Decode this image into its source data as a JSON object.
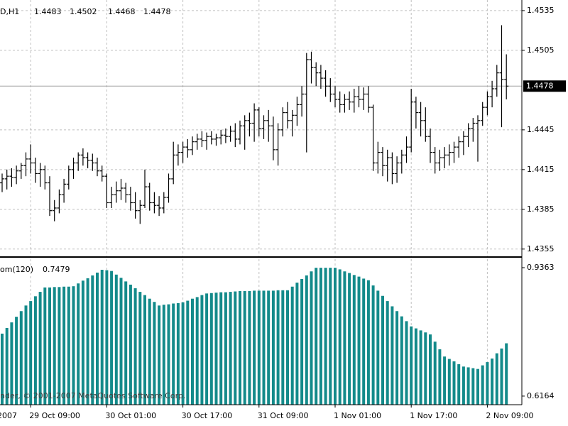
{
  "chart_data": [
    {
      "type": "ohlc",
      "symbol_label": "D,H1",
      "first_x_label": "2007",
      "copyright": "nder, © 2001-2007 MetaQuotes Software Corp.",
      "color": "#000000",
      "grid": true,
      "current_price_line": true,
      "ylim": [
        1.4349,
        1.4543
      ],
      "yticks": [
        1.4535,
        1.4505,
        1.4445,
        1.4415,
        1.4385,
        1.4355
      ],
      "categories": [
        null,
        null,
        null,
        null,
        null,
        null,
        "29 Oct 09:00",
        null,
        null,
        null,
        null,
        null,
        null,
        null,
        null,
        null,
        null,
        null,
        null,
        null,
        null,
        null,
        "30 Oct 01:00",
        null,
        null,
        null,
        null,
        null,
        null,
        null,
        null,
        null,
        null,
        null,
        null,
        null,
        null,
        null,
        "30 Oct 17:00",
        null,
        null,
        null,
        null,
        null,
        null,
        null,
        null,
        null,
        null,
        null,
        null,
        null,
        null,
        null,
        "31 Oct 09:00",
        null,
        null,
        null,
        null,
        null,
        null,
        null,
        null,
        null,
        null,
        null,
        null,
        null,
        null,
        null,
        "1 Nov 01:00",
        null,
        null,
        null,
        null,
        null,
        null,
        null,
        null,
        null,
        null,
        null,
        null,
        null,
        null,
        null,
        "1 Nov 17:00",
        null,
        null,
        null,
        null,
        null,
        null,
        null,
        null,
        null,
        null,
        null,
        null,
        null,
        null,
        null,
        "2 Nov 09:00",
        null,
        null,
        null,
        null
      ],
      "ohlc": [
        [
          1.4405,
          1.4412,
          1.4398,
          1.4408
        ],
        [
          1.4408,
          1.4415,
          1.44,
          1.441
        ],
        [
          1.441,
          1.4416,
          1.4402,
          1.4409
        ],
        [
          1.4409,
          1.4418,
          1.4404,
          1.4414
        ],
        [
          1.4414,
          1.442,
          1.4408,
          1.4418
        ],
        [
          1.4418,
          1.4428,
          1.441,
          1.4423
        ],
        [
          1.4423,
          1.4434,
          1.4412,
          1.442
        ],
        [
          1.442,
          1.4424,
          1.4405,
          1.4412
        ],
        [
          1.4412,
          1.442,
          1.4402,
          1.4415
        ],
        [
          1.4415,
          1.4418,
          1.44,
          1.4405
        ],
        [
          1.4405,
          1.441,
          1.438,
          1.4384
        ],
        [
          1.4384,
          1.4392,
          1.4376,
          1.4386
        ],
        [
          1.4386,
          1.44,
          1.4382,
          1.4396
        ],
        [
          1.4396,
          1.4408,
          1.439,
          1.4404
        ],
        [
          1.4404,
          1.4418,
          1.44,
          1.4415
        ],
        [
          1.4415,
          1.4424,
          1.4408,
          1.442
        ],
        [
          1.442,
          1.4428,
          1.4414,
          1.4426
        ],
        [
          1.4426,
          1.4431,
          1.4418,
          1.4424
        ],
        [
          1.4424,
          1.4428,
          1.4416,
          1.4422
        ],
        [
          1.4422,
          1.4427,
          1.4414,
          1.442
        ],
        [
          1.442,
          1.4424,
          1.441,
          1.4414
        ],
        [
          1.4414,
          1.4418,
          1.4406,
          1.441
        ],
        [
          1.441,
          1.4412,
          1.4386,
          1.439
        ],
        [
          1.439,
          1.4402,
          1.4386,
          1.4396
        ],
        [
          1.4396,
          1.4406,
          1.439,
          1.4399
        ],
        [
          1.4399,
          1.4408,
          1.4392,
          1.4401
        ],
        [
          1.4401,
          1.4405,
          1.439,
          1.4396
        ],
        [
          1.4396,
          1.4402,
          1.4384,
          1.439
        ],
        [
          1.439,
          1.4398,
          1.4378,
          1.4384
        ],
        [
          1.4384,
          1.4392,
          1.4374,
          1.4388
        ],
        [
          1.4388,
          1.4415,
          1.4386,
          1.4402
        ],
        [
          1.4402,
          1.4405,
          1.4384,
          1.439
        ],
        [
          1.439,
          1.4398,
          1.4382,
          1.4388
        ],
        [
          1.4388,
          1.4395,
          1.438,
          1.4386
        ],
        [
          1.4386,
          1.4398,
          1.4382,
          1.4394
        ],
        [
          1.4394,
          1.4412,
          1.439,
          1.4408
        ],
        [
          1.4408,
          1.4436,
          1.4404,
          1.4426
        ],
        [
          1.4426,
          1.4434,
          1.4418,
          1.4428
        ],
        [
          1.4428,
          1.4436,
          1.442,
          1.4432
        ],
        [
          1.4432,
          1.4438,
          1.4424,
          1.443
        ],
        [
          1.443,
          1.444,
          1.4426,
          1.4436
        ],
        [
          1.4436,
          1.4442,
          1.443,
          1.4438
        ],
        [
          1.4438,
          1.4444,
          1.4432,
          1.4437
        ],
        [
          1.4437,
          1.4443,
          1.443,
          1.444
        ],
        [
          1.444,
          1.4444,
          1.4434,
          1.4438
        ],
        [
          1.4438,
          1.4442,
          1.4433,
          1.4439
        ],
        [
          1.4439,
          1.4445,
          1.4434,
          1.4441
        ],
        [
          1.4441,
          1.4446,
          1.4435,
          1.444
        ],
        [
          1.444,
          1.4448,
          1.4436,
          1.4444
        ],
        [
          1.4444,
          1.445,
          1.4432,
          1.4438
        ],
        [
          1.4438,
          1.4452,
          1.4434,
          1.4448
        ],
        [
          1.4448,
          1.4456,
          1.443,
          1.4452
        ],
        [
          1.4452,
          1.4458,
          1.444,
          1.445
        ],
        [
          1.445,
          1.4465,
          1.4436,
          1.446
        ],
        [
          1.446,
          1.4462,
          1.444,
          1.4446
        ],
        [
          1.4446,
          1.4456,
          1.4438,
          1.4452
        ],
        [
          1.4452,
          1.446,
          1.4436,
          1.4448
        ],
        [
          1.4448,
          1.4455,
          1.4422,
          1.443
        ],
        [
          1.443,
          1.445,
          1.4418,
          1.4445
        ],
        [
          1.4445,
          1.4462,
          1.444,
          1.4458
        ],
        [
          1.4458,
          1.4466,
          1.4446,
          1.4452
        ],
        [
          1.4452,
          1.446,
          1.444,
          1.4456
        ],
        [
          1.4456,
          1.447,
          1.4448,
          1.4464
        ],
        [
          1.4464,
          1.4478,
          1.4455,
          1.4472
        ],
        [
          1.4472,
          1.4503,
          1.4428,
          1.4498
        ],
        [
          1.4498,
          1.4504,
          1.448,
          1.4492
        ],
        [
          1.4492,
          1.4496,
          1.4478,
          1.4488
        ],
        [
          1.4488,
          1.4494,
          1.4476,
          1.4484
        ],
        [
          1.4484,
          1.449,
          1.447,
          1.4478
        ],
        [
          1.4478,
          1.4484,
          1.4466,
          1.4472
        ],
        [
          1.4472,
          1.4478,
          1.4462,
          1.4468
        ],
        [
          1.4468,
          1.4474,
          1.4458,
          1.4464
        ],
        [
          1.4464,
          1.4472,
          1.4458,
          1.4468
        ],
        [
          1.4468,
          1.4474,
          1.446,
          1.4466
        ],
        [
          1.4466,
          1.4476,
          1.4458,
          1.447
        ],
        [
          1.447,
          1.4478,
          1.4462,
          1.4468
        ],
        [
          1.4468,
          1.4477,
          1.446,
          1.4472
        ],
        [
          1.4472,
          1.4478,
          1.4458,
          1.4462
        ],
        [
          1.4462,
          1.4464,
          1.4414,
          1.442
        ],
        [
          1.442,
          1.4436,
          1.4412,
          1.4428
        ],
        [
          1.4428,
          1.4432,
          1.441,
          1.4418
        ],
        [
          1.4418,
          1.443,
          1.4406,
          1.4424
        ],
        [
          1.4424,
          1.4428,
          1.4404,
          1.4412
        ],
        [
          1.4412,
          1.4425,
          1.4405,
          1.442
        ],
        [
          1.442,
          1.443,
          1.4412,
          1.4426
        ],
        [
          1.4426,
          1.444,
          1.442,
          1.4432
        ],
        [
          1.4432,
          1.4476,
          1.4428,
          1.4466
        ],
        [
          1.4466,
          1.447,
          1.4446,
          1.4458
        ],
        [
          1.4458,
          1.4466,
          1.444,
          1.4452
        ],
        [
          1.4452,
          1.4462,
          1.4436,
          1.444
        ],
        [
          1.444,
          1.4446,
          1.442,
          1.4428
        ],
        [
          1.4428,
          1.4432,
          1.4412,
          1.442
        ],
        [
          1.442,
          1.443,
          1.4414,
          1.4424
        ],
        [
          1.4424,
          1.4432,
          1.4416,
          1.4426
        ],
        [
          1.4426,
          1.4434,
          1.4418,
          1.4428
        ],
        [
          1.4428,
          1.4436,
          1.442,
          1.4432
        ],
        [
          1.4432,
          1.444,
          1.4424,
          1.4436
        ],
        [
          1.4436,
          1.4444,
          1.4426,
          1.444
        ],
        [
          1.444,
          1.445,
          1.4432,
          1.4446
        ],
        [
          1.4446,
          1.4454,
          1.4436,
          1.445
        ],
        [
          1.445,
          1.4456,
          1.4421,
          1.4452
        ],
        [
          1.4452,
          1.4466,
          1.4448,
          1.4462
        ],
        [
          1.4462,
          1.4474,
          1.4456,
          1.447
        ],
        [
          1.447,
          1.4482,
          1.4462,
          1.4476
        ],
        [
          1.4476,
          1.4494,
          1.447,
          1.4488
        ],
        [
          1.4488,
          1.4524,
          1.4447,
          1.4483
        ],
        [
          1.4483,
          1.4502,
          1.4468,
          1.4478
        ]
      ]
    },
    {
      "type": "bar",
      "name": "om(120)",
      "color": "#138a8a",
      "ylim": [
        0.595,
        0.9575
      ],
      "yticks": [
        0.9363,
        0.6164
      ],
      "values": [
        0.772,
        0.786,
        0.8,
        0.814,
        0.828,
        0.842,
        0.853,
        0.865,
        0.876,
        0.887,
        0.887,
        0.888,
        0.888,
        0.889,
        0.889,
        0.89,
        0.897,
        0.904,
        0.91,
        0.917,
        0.924,
        0.931,
        0.93,
        0.928,
        0.919,
        0.911,
        0.902,
        0.894,
        0.885,
        0.876,
        0.868,
        0.859,
        0.851,
        0.842,
        0.844,
        0.845,
        0.847,
        0.848,
        0.85,
        0.854,
        0.859,
        0.863,
        0.868,
        0.872,
        0.873,
        0.874,
        0.875,
        0.875,
        0.876,
        0.877,
        0.878,
        0.878,
        0.878,
        0.879,
        0.879,
        0.879,
        0.879,
        0.879,
        0.88,
        0.88,
        0.88,
        0.889,
        0.899,
        0.908,
        0.917,
        0.927,
        0.936,
        0.936,
        0.936,
        0.936,
        0.936,
        0.932,
        0.927,
        0.923,
        0.918,
        0.914,
        0.909,
        0.905,
        0.892,
        0.879,
        0.866,
        0.853,
        0.84,
        0.828,
        0.815,
        0.803,
        0.79,
        0.785,
        0.78,
        0.775,
        0.77,
        0.752,
        0.733,
        0.715,
        0.709,
        0.703,
        0.696,
        0.69,
        0.688,
        0.686,
        0.684,
        0.693,
        0.701,
        0.71,
        0.723,
        0.735,
        0.7479
      ]
    }
  ]
}
